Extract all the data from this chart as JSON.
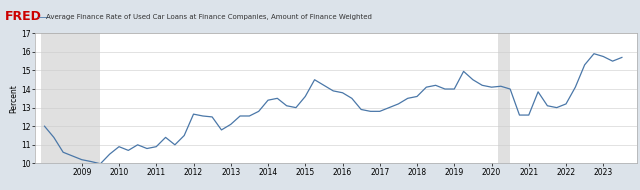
{
  "title": "Average Finance Rate of Used Car Loans at Finance Companies, Amount of Finance Weighted",
  "ylabel": "Percent",
  "ylim": [
    10,
    17
  ],
  "yticks": [
    10,
    11,
    12,
    13,
    14,
    15,
    16,
    17
  ],
  "fig_bg_color": "#dce3ea",
  "plot_bg_color": "#ffffff",
  "line_color": "#4a77a8",
  "recession1_start": 2007.917,
  "recession1_end": 2009.5,
  "recession2_start": 2020.17,
  "recession2_end": 2020.5,
  "recession_color": "#e0e0e0",
  "header_bg_color": "#dce3ea",
  "dates": [
    2008.0,
    2008.25,
    2008.5,
    2008.75,
    2009.0,
    2009.25,
    2009.5,
    2009.75,
    2010.0,
    2010.25,
    2010.5,
    2010.75,
    2011.0,
    2011.25,
    2011.5,
    2011.75,
    2012.0,
    2012.25,
    2012.5,
    2012.75,
    2013.0,
    2013.25,
    2013.5,
    2013.75,
    2014.0,
    2014.25,
    2014.5,
    2014.75,
    2015.0,
    2015.25,
    2015.5,
    2015.75,
    2016.0,
    2016.25,
    2016.5,
    2016.75,
    2017.0,
    2017.25,
    2017.5,
    2017.75,
    2018.0,
    2018.25,
    2018.5,
    2018.75,
    2019.0,
    2019.25,
    2019.5,
    2019.75,
    2020.0,
    2020.25,
    2020.5,
    2020.75,
    2021.0,
    2021.25,
    2021.5,
    2021.75,
    2022.0,
    2022.25,
    2022.5,
    2022.75,
    2023.0,
    2023.25,
    2023.5
  ],
  "values": [
    12.0,
    11.4,
    10.6,
    10.4,
    10.2,
    10.1,
    9.98,
    10.5,
    10.9,
    10.7,
    11.0,
    10.8,
    10.9,
    11.4,
    11.0,
    11.5,
    12.65,
    12.55,
    12.5,
    11.8,
    12.1,
    12.55,
    12.55,
    12.8,
    13.4,
    13.5,
    13.1,
    13.0,
    13.6,
    14.5,
    14.2,
    13.9,
    13.8,
    13.5,
    12.9,
    12.8,
    12.8,
    13.0,
    13.2,
    13.5,
    13.6,
    14.1,
    14.2,
    14.0,
    14.0,
    14.95,
    14.5,
    14.2,
    14.1,
    14.15,
    14.0,
    12.6,
    12.6,
    13.85,
    13.1,
    13.0,
    13.2,
    14.1,
    15.3,
    15.9,
    15.75,
    15.5,
    15.7
  ],
  "xticks": [
    2009,
    2010,
    2011,
    2012,
    2013,
    2014,
    2015,
    2016,
    2017,
    2018,
    2019,
    2020,
    2021,
    2022,
    2023
  ],
  "xlim": [
    2007.75,
    2023.9
  ]
}
